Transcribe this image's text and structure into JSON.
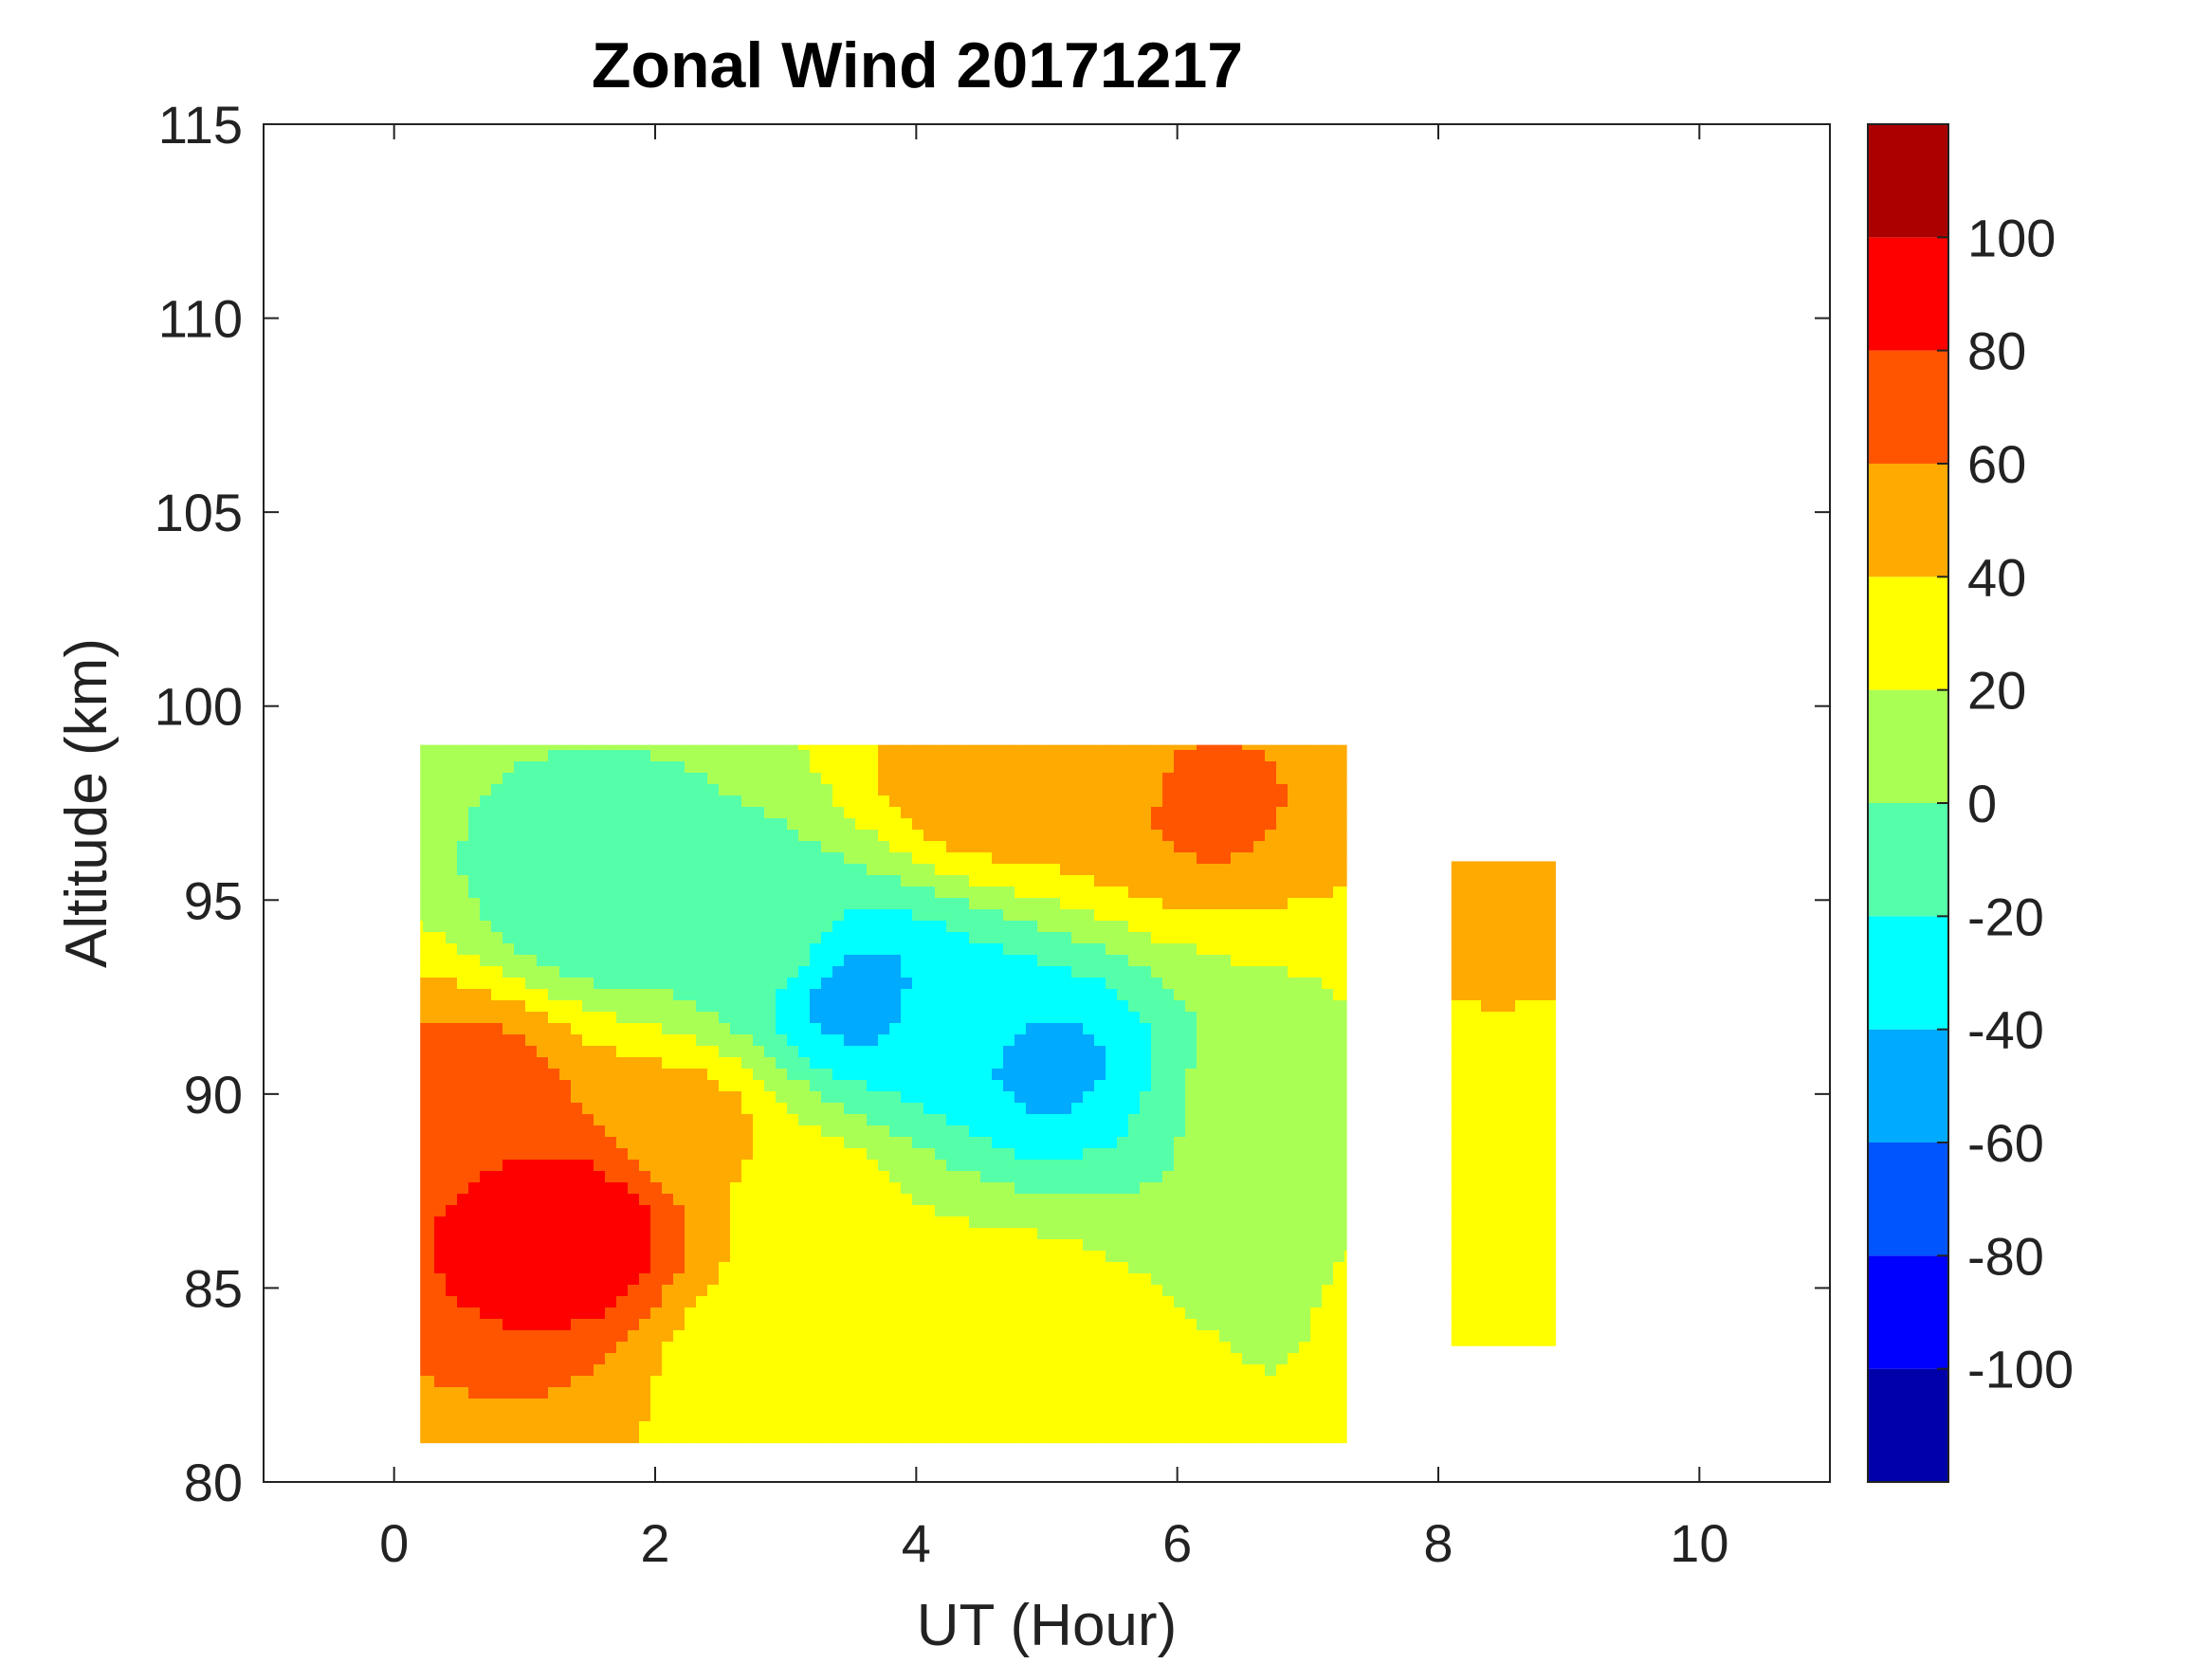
{
  "chart_data": {
    "type": "heatmap",
    "title": "Zonal Wind 20171217",
    "xlabel": "UT (Hour)",
    "ylabel": "Altitude (km)",
    "xlim": [
      -1,
      11
    ],
    "ylim": [
      80,
      115
    ],
    "x_ticks": [
      0,
      2,
      4,
      6,
      8,
      10
    ],
    "y_ticks": [
      80,
      85,
      90,
      95,
      100,
      105,
      110,
      115
    ],
    "colorbar": {
      "range": [
        -120,
        120
      ],
      "ticks": [
        -100,
        -80,
        -60,
        -40,
        -20,
        0,
        20,
        40,
        60,
        80,
        100
      ],
      "levels": [
        {
          "from": -120,
          "to": -100,
          "color": "#0000AA"
        },
        {
          "from": -100,
          "to": -80,
          "color": "#0000FF"
        },
        {
          "from": -80,
          "to": -60,
          "color": "#0055FF"
        },
        {
          "from": -60,
          "to": -40,
          "color": "#00AAFF"
        },
        {
          "from": -40,
          "to": -20,
          "color": "#00FFFF"
        },
        {
          "from": -20,
          "to": 0,
          "color": "#55FFAA"
        },
        {
          "from": 0,
          "to": 20,
          "color": "#AAFF55"
        },
        {
          "from": 20,
          "to": 40,
          "color": "#FFFF00"
        },
        {
          "from": 40,
          "to": 60,
          "color": "#FFAA00"
        },
        {
          "from": 60,
          "to": 80,
          "color": "#FF5500"
        },
        {
          "from": 80,
          "to": 100,
          "color": "#FF0000"
        },
        {
          "from": 100,
          "to": 120,
          "color": "#AA0000"
        }
      ]
    },
    "grid": false,
    "data_gap_hours": [
      7.3,
      8.1
    ],
    "coverage": [
      {
        "x_range": [
          0.2,
          7.3
        ],
        "altitude_range": [
          81,
          99
        ]
      },
      {
        "x_range": [
          8.1,
          8.9
        ],
        "altitude_range": [
          83.5,
          96
        ]
      }
    ],
    "features": [
      {
        "x": 1.4,
        "altitude": 86.5,
        "value": 100
      },
      {
        "x": 1.2,
        "altitude": 86.5,
        "value": 90
      },
      {
        "x": 0.6,
        "altitude": 90.0,
        "value": 70
      },
      {
        "x": 2.2,
        "altitude": 89.0,
        "value": 50
      },
      {
        "x": 3.6,
        "altitude": 92.5,
        "value": -50
      },
      {
        "x": 4.2,
        "altitude": 92.0,
        "value": -30
      },
      {
        "x": 5.0,
        "altitude": 90.8,
        "value": -45
      },
      {
        "x": 1.6,
        "altitude": 95.0,
        "value": -20
      },
      {
        "x": 2.8,
        "altitude": 94.0,
        "value": -10
      },
      {
        "x": 5.5,
        "altitude": 98.0,
        "value": 55
      },
      {
        "x": 6.2,
        "altitude": 97.5,
        "value": 65
      },
      {
        "x": 4.5,
        "altitude": 98.0,
        "value": 55
      },
      {
        "x": 6.8,
        "altitude": 90.0,
        "value": 8
      },
      {
        "x": 3.2,
        "altitude": 87.0,
        "value": 28
      },
      {
        "x": 2.8,
        "altitude": 83.5,
        "value": 28
      },
      {
        "x": 4.6,
        "altitude": 84.0,
        "value": 35
      },
      {
        "x": 8.4,
        "altitude": 94.0,
        "value": 45
      },
      {
        "x": 8.4,
        "altitude": 89.0,
        "value": 25
      },
      {
        "x": 8.4,
        "altitude": 85.0,
        "value": 25
      }
    ],
    "background_value": 15
  }
}
